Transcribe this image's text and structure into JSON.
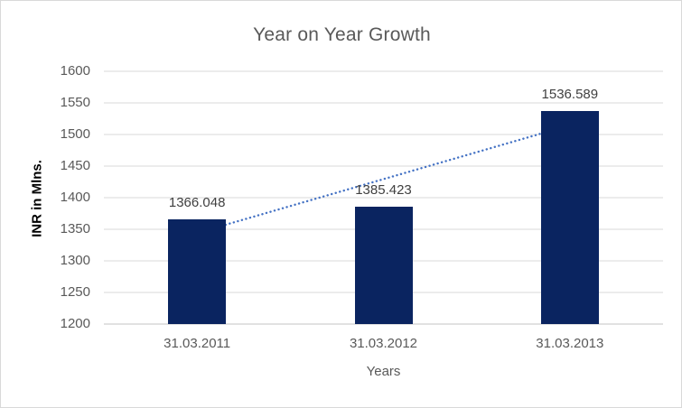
{
  "chart_data": {
    "type": "bar",
    "title": "Year on Year Growth",
    "categories": [
      "31.03.2011",
      "31.03.2012",
      "31.03.2013"
    ],
    "values": [
      1366.048,
      1385.423,
      1536.589
    ],
    "data_labels": [
      "1366.048",
      "1385.423",
      "1536.589"
    ],
    "xlabel": "Years",
    "ylabel": "INR in Mlns.",
    "ylim": [
      1200,
      1600
    ],
    "yticks": [
      1200,
      1250,
      1300,
      1350,
      1400,
      1450,
      1500,
      1550,
      1600
    ],
    "grid": true,
    "legend": "none",
    "bar_color": "#0a2460",
    "trendline": {
      "type": "linear",
      "style": "dotted",
      "color": "#4472c4",
      "start_value": 1344.1,
      "end_value": 1514.6
    },
    "colors": {
      "gridline": "#d9d9d9",
      "axis_line": "#c3c3c3",
      "title": "#595959",
      "tick_label": "#595959",
      "data_label": "#404040",
      "axis_title_x": "#595959",
      "axis_title_y": "#000000",
      "frame_border": "#d9d9d9",
      "background": "#ffffff"
    }
  }
}
